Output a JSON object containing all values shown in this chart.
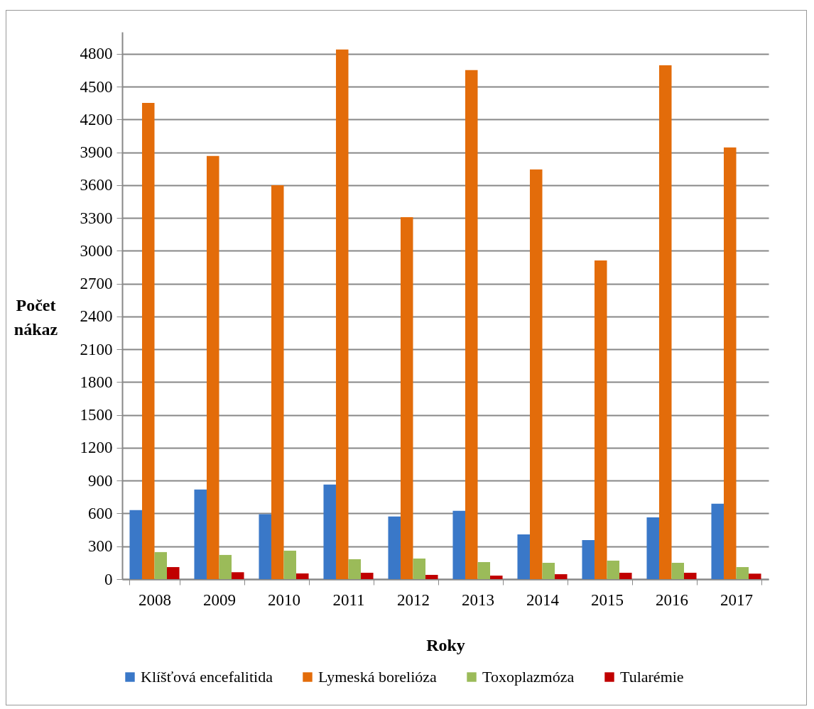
{
  "chart_data": {
    "type": "bar",
    "xlabel": "Roky",
    "ylabel": "Počet nákaz",
    "categories": [
      "2008",
      "2009",
      "2010",
      "2011",
      "2012",
      "2013",
      "2014",
      "2015",
      "2016",
      "2017"
    ],
    "series": [
      {
        "name": "Klíšťová encefalitida",
        "color": "#3a78c8",
        "values": [
          630,
          819,
          593,
          864,
          572,
          624,
          409,
          357,
          565,
          689
        ]
      },
      {
        "name": "Lymeská borelióza",
        "color": "#e36c0a",
        "values": [
          4352,
          3866,
          3600,
          4839,
          3308,
          4651,
          3743,
          2912,
          4696,
          3944
        ]
      },
      {
        "name": "Toxoplazmóza",
        "color": "#9bbb59",
        "values": [
          247,
          221,
          260,
          182,
          188,
          156,
          149,
          169,
          149,
          110
        ]
      },
      {
        "name": "Tularémie",
        "color": "#c00000",
        "values": [
          110,
          63,
          52,
          58,
          39,
          32,
          45,
          58,
          58,
          50
        ]
      }
    ],
    "ylim": [
      0,
      5000
    ],
    "yticks": [
      0,
      300,
      600,
      900,
      1200,
      1500,
      1800,
      2100,
      2400,
      2700,
      3000,
      3300,
      3600,
      3900,
      4200,
      4500,
      4800
    ],
    "grid": "y",
    "legend": "bottom"
  }
}
